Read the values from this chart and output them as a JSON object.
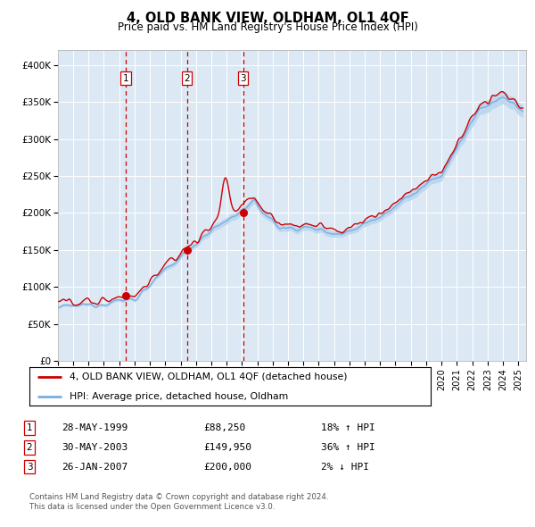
{
  "title": "4, OLD BANK VIEW, OLDHAM, OL1 4QF",
  "subtitle": "Price paid vs. HM Land Registry's House Price Index (HPI)",
  "bg_color": "#dce9f5",
  "fig_bg_color": "#ffffff",
  "grid_color": "#ffffff",
  "sale_dates_num": [
    1999.41,
    2003.41,
    2007.07
  ],
  "sale_prices": [
    88250,
    149950,
    200000
  ],
  "sale_labels": [
    "1",
    "2",
    "3"
  ],
  "legend_line1": "4, OLD BANK VIEW, OLDHAM, OL1 4QF (detached house)",
  "legend_line2": "HPI: Average price, detached house, Oldham",
  "table_rows": [
    [
      "1",
      "28-MAY-1999",
      "£88,250",
      "18% ↑ HPI"
    ],
    [
      "2",
      "30-MAY-2003",
      "£149,950",
      "36% ↑ HPI"
    ],
    [
      "3",
      "26-JAN-2007",
      "£200,000",
      "2% ↓ HPI"
    ]
  ],
  "footer": "Contains HM Land Registry data © Crown copyright and database right 2024.\nThis data is licensed under the Open Government Licence v3.0.",
  "ylim": [
    0,
    420000
  ],
  "yticks": [
    0,
    50000,
    100000,
    150000,
    200000,
    250000,
    300000,
    350000,
    400000
  ],
  "ytick_labels": [
    "£0",
    "£50K",
    "£100K",
    "£150K",
    "£200K",
    "£250K",
    "£300K",
    "£350K",
    "£400K"
  ],
  "red_line_color": "#cc0000",
  "blue_line_color": "#7aade0",
  "blue_fill_color": "#b8d4ef",
  "dashed_line_color": "#cc0000",
  "marker_color": "#cc0000",
  "box_edge_color": "#cc0000",
  "xlim_start": 1995,
  "xlim_end": 2025.5
}
